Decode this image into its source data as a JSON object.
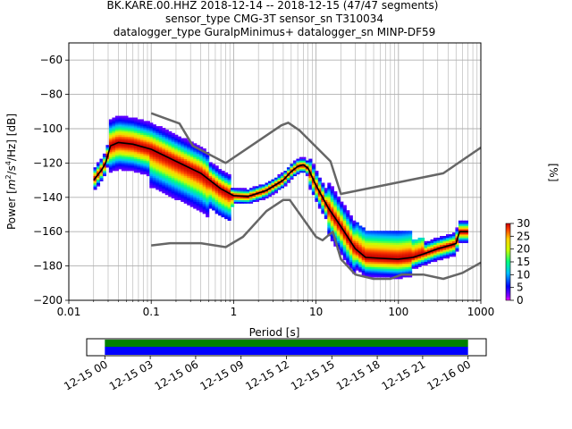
{
  "chart_data": [
    {
      "type": "heatmap",
      "title_lines": [
        "BK.KARE.00.HHZ   2018-12-14 -- 2018-12-15  (47/47 segments)",
        "sensor_type CMG-3T sensor_sn T310034",
        "datalogger_type GuralpMinimus+ datalogger_sn MINP-DF59"
      ],
      "xlabel": "Period [s]",
      "ylabel_prefix": "Power [",
      "ylabel_unit": "m",
      "ylabel_exp1": "2",
      "ylabel_mid": "/s",
      "ylabel_exp2": "4",
      "ylabel_suffix": "/Hz] [dB]",
      "xscale": "log",
      "xlim": [
        0.01,
        1000
      ],
      "ylim": [
        -200,
        -50
      ],
      "grid": true,
      "x_ticks": [
        {
          "value": 0.01,
          "label": "0.01"
        },
        {
          "value": 0.1,
          "label": "0.1"
        },
        {
          "value": 1,
          "label": "1"
        },
        {
          "value": 10,
          "label": "10"
        },
        {
          "value": 100,
          "label": "100"
        },
        {
          "value": 1000,
          "label": "1000"
        }
      ],
      "y_ticks": [
        {
          "value": -60,
          "label": "−60"
        },
        {
          "value": -80,
          "label": "−80"
        },
        {
          "value": -100,
          "label": "−100"
        },
        {
          "value": -120,
          "label": "−120"
        },
        {
          "value": -140,
          "label": "−140"
        },
        {
          "value": -160,
          "label": "−160"
        },
        {
          "value": -180,
          "label": "−180"
        },
        {
          "value": -200,
          "label": "−200"
        }
      ],
      "colorbar": {
        "label": "[%]",
        "min": 0,
        "max": 30,
        "ticks": [
          {
            "value": 0,
            "label": "0"
          },
          {
            "value": 5,
            "label": "5"
          },
          {
            "value": 10,
            "label": "10"
          },
          {
            "value": 15,
            "label": "15"
          },
          {
            "value": 20,
            "label": "20"
          },
          {
            "value": 25,
            "label": "25"
          },
          {
            "value": 30,
            "label": "30"
          }
        ]
      },
      "noise_models": {
        "color": "#666666",
        "high": [
          [
            0.1,
            -91
          ],
          [
            0.22,
            -97
          ],
          [
            0.32,
            -110
          ],
          [
            0.8,
            -120
          ],
          [
            3.8,
            -98
          ],
          [
            4.6,
            -96.5
          ],
          [
            6.3,
            -101
          ],
          [
            15,
            -119
          ],
          [
            20,
            -138
          ],
          [
            350,
            -126
          ],
          [
            1000,
            -111
          ]
        ],
        "low": [
          [
            0.1,
            -168
          ],
          [
            0.17,
            -166.7
          ],
          [
            0.4,
            -166.7
          ],
          [
            0.8,
            -169
          ],
          [
            1.3,
            -163
          ],
          [
            2.5,
            -148
          ],
          [
            4,
            -141.5
          ],
          [
            4.8,
            -141.5
          ],
          [
            6,
            -148
          ],
          [
            10,
            -163
          ],
          [
            12,
            -165
          ],
          [
            16,
            -160
          ],
          [
            20,
            -176
          ],
          [
            30,
            -185
          ],
          [
            50,
            -187.5
          ],
          [
            80,
            -187.5
          ],
          [
            110,
            -185
          ],
          [
            200,
            -185
          ],
          [
            350,
            -187.5
          ],
          [
            600,
            -184
          ],
          [
            1000,
            -178
          ]
        ]
      },
      "mean_psd": {
        "color": "#000000",
        "points": [
          [
            0.02,
            -130
          ],
          [
            0.025,
            -124
          ],
          [
            0.028,
            -120
          ],
          [
            0.032,
            -110
          ],
          [
            0.04,
            -108
          ],
          [
            0.06,
            -109
          ],
          [
            0.1,
            -112
          ],
          [
            0.2,
            -119
          ],
          [
            0.4,
            -126
          ],
          [
            0.7,
            -135
          ],
          [
            1,
            -139
          ],
          [
            1.5,
            -139.5
          ],
          [
            2.5,
            -136
          ],
          [
            4,
            -130
          ],
          [
            5,
            -125
          ],
          [
            6,
            -122
          ],
          [
            7,
            -121
          ],
          [
            8,
            -123
          ],
          [
            10,
            -133
          ],
          [
            14,
            -146
          ],
          [
            20,
            -157
          ],
          [
            30,
            -170
          ],
          [
            40,
            -175
          ],
          [
            60,
            -175.5
          ],
          [
            100,
            -176
          ],
          [
            150,
            -175
          ],
          [
            200,
            -173
          ],
          [
            300,
            -170
          ],
          [
            500,
            -167
          ],
          [
            550,
            -160
          ],
          [
            700,
            -160
          ]
        ]
      },
      "time_axis": {
        "ticks": [
          {
            "value": 0,
            "label": "12-15 00"
          },
          {
            "value": 3,
            "label": "12-15 03"
          },
          {
            "value": 6,
            "label": "12-15 06"
          },
          {
            "value": 9,
            "label": "12-15 09"
          },
          {
            "value": 12,
            "label": "12-15 12"
          },
          {
            "value": 15,
            "label": "12-15 15"
          },
          {
            "value": 18,
            "label": "12-15 18"
          },
          {
            "value": 21,
            "label": "12-15 21"
          },
          {
            "value": 24,
            "label": "12-16 00"
          }
        ],
        "range_hours": [
          -1.2,
          25.2
        ],
        "data_span_hours": [
          0,
          24
        ],
        "segment_color": "#0000ff",
        "coverage_color": "#008000"
      }
    }
  ]
}
